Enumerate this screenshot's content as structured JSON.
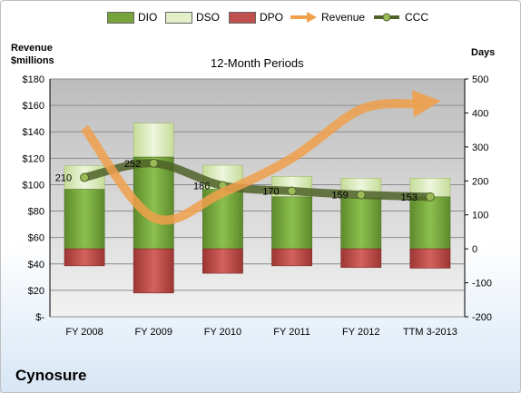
{
  "company": "Cynosure",
  "chart_data": {
    "type": "bar",
    "title": "12-Month Periods",
    "left_axis_title": "Revenue\n$millions",
    "right_axis_title": "Days",
    "categories": [
      "FY 2008",
      "FY 2009",
      "FY 2010",
      "FY 2011",
      "FY 2012",
      "TTM 3-2013"
    ],
    "left_ylim": [
      0,
      180
    ],
    "left_ticks": [
      "$-",
      "$20",
      "$40",
      "$60",
      "$80",
      "$100",
      "$120",
      "$140",
      "$160",
      "$180"
    ],
    "right_ylim": [
      -200,
      500
    ],
    "right_ticks": [
      "-200",
      "-100",
      "0",
      "100",
      "200",
      "300",
      "400",
      "500"
    ],
    "grid": true,
    "legend_position": "top",
    "series": [
      {
        "name": "DIO",
        "axis": "right",
        "kind": "stacked-bar",
        "color": "#76a33c",
        "values": [
          175,
          270,
          175,
          153,
          150,
          153
        ]
      },
      {
        "name": "DSO",
        "axis": "right",
        "kind": "stacked-bar",
        "color": "#d6e8b4",
        "values": [
          70,
          100,
          71,
          60,
          58,
          55
        ]
      },
      {
        "name": "DPO",
        "axis": "right",
        "kind": "stacked-bar-negative",
        "color": "#c0504d",
        "values": [
          -50,
          -130,
          -72,
          -50,
          -55,
          -57
        ]
      },
      {
        "name": "Revenue",
        "axis": "left",
        "kind": "line",
        "color": "#f0a04b",
        "values": [
          143,
          75,
          94,
          120,
          157,
          162
        ]
      },
      {
        "name": "CCC",
        "axis": "right",
        "kind": "line",
        "color": "#4f6228",
        "values": [
          210,
          252,
          186,
          170,
          159,
          153
        ],
        "data_labels": [
          "210",
          "252",
          "186",
          "170",
          "159",
          "153"
        ]
      }
    ]
  }
}
